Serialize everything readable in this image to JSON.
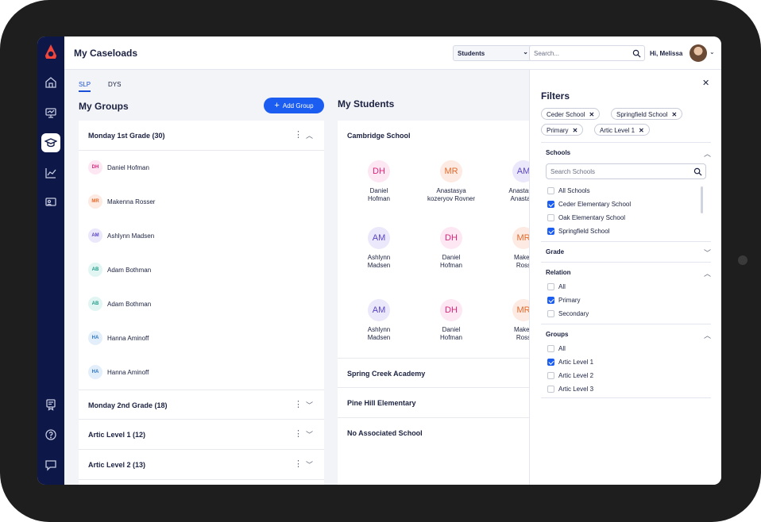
{
  "app": {
    "title": "My Caseloads"
  },
  "header": {
    "view_select": "Students",
    "search_placeholder": "Search...",
    "greeting": "Hi, Melissa"
  },
  "tabs": [
    "SLP",
    "DYS"
  ],
  "groups_panel": {
    "title": "My Groups",
    "add_button": "Add Group",
    "groups": [
      {
        "title": "Monday 1st Grade (30)",
        "expanded": true
      },
      {
        "title": "Monday 2nd Grade (18)",
        "expanded": false
      },
      {
        "title": "Artic Level 1 (12)",
        "expanded": false
      },
      {
        "title": "Artic Level 2 (13)",
        "expanded": false
      }
    ],
    "students": [
      {
        "initials": "DH",
        "name": "Daniel Hofman",
        "color": "pink"
      },
      {
        "initials": "MR",
        "name": "Makenna Rosser",
        "color": "orange"
      },
      {
        "initials": "AM",
        "name": "Ashlynn Madsen",
        "color": "purple"
      },
      {
        "initials": "AB",
        "name": "Adam Bothman",
        "color": "teal"
      },
      {
        "initials": "AB",
        "name": "Adam Bothman",
        "color": "teal"
      },
      {
        "initials": "HA",
        "name": "Hanna Aminoff",
        "color": "blue"
      },
      {
        "initials": "HA",
        "name": "Hanna Aminoff",
        "color": "blue"
      }
    ]
  },
  "students_panel": {
    "title": "My Students",
    "schools": [
      "Cambridge School",
      "Spring Creek Academy",
      "Pine Hill Elementary",
      "No Associated School"
    ],
    "cards": [
      {
        "initials": "DH",
        "line1": "Daniel",
        "line2": "Hofman",
        "color": "pink"
      },
      {
        "initials": "MR",
        "line1": "Anastasya",
        "line2": "kozeryov Rovner",
        "color": "orange"
      },
      {
        "initials": "AM",
        "line1": "Anastasya",
        "line2": "Anastasy",
        "color": "purple"
      },
      {
        "initials": "AM",
        "line1": "Ashlynn",
        "line2": "Madsen",
        "color": "purple"
      },
      {
        "initials": "DH",
        "line1": "Daniel",
        "line2": "Hofman",
        "color": "pink"
      },
      {
        "initials": "MR",
        "line1": "Maken",
        "line2": "Ross",
        "color": "orange"
      },
      {
        "initials": "AM",
        "line1": "Ashlynn",
        "line2": "Madsen",
        "color": "purple"
      },
      {
        "initials": "DH",
        "line1": "Daniel",
        "line2": "Hofman",
        "color": "pink"
      },
      {
        "initials": "MR",
        "line1": "Maken",
        "line2": "Ross",
        "color": "orange"
      }
    ]
  },
  "filters": {
    "title": "Filters",
    "chips": [
      "Ceder School",
      "Springfield School",
      "Primary",
      "Artic Level 1"
    ],
    "schools": {
      "title": "Schools",
      "search_placeholder": "Search Schools",
      "options": [
        {
          "label": "All Schools",
          "checked": false
        },
        {
          "label": "Ceder Elementary School",
          "checked": true
        },
        {
          "label": "Oak Elementary School",
          "checked": false
        },
        {
          "label": "Springfield School",
          "checked": true
        }
      ]
    },
    "grade": {
      "title": "Grade"
    },
    "relation": {
      "title": "Relation",
      "options": [
        {
          "label": "All",
          "checked": false
        },
        {
          "label": "Primary",
          "checked": true
        },
        {
          "label": "Secondary",
          "checked": false
        }
      ]
    },
    "groups": {
      "title": "Groups",
      "options": [
        {
          "label": "All",
          "checked": false
        },
        {
          "label": "Artic Level 1",
          "checked": true
        },
        {
          "label": "Artic Level 2",
          "checked": false
        },
        {
          "label": "Artic Level 3",
          "checked": false
        }
      ]
    }
  },
  "colors": {
    "accent": "#1b5cf1",
    "rail": "#0d1748",
    "brand_red": "#f0453a"
  }
}
